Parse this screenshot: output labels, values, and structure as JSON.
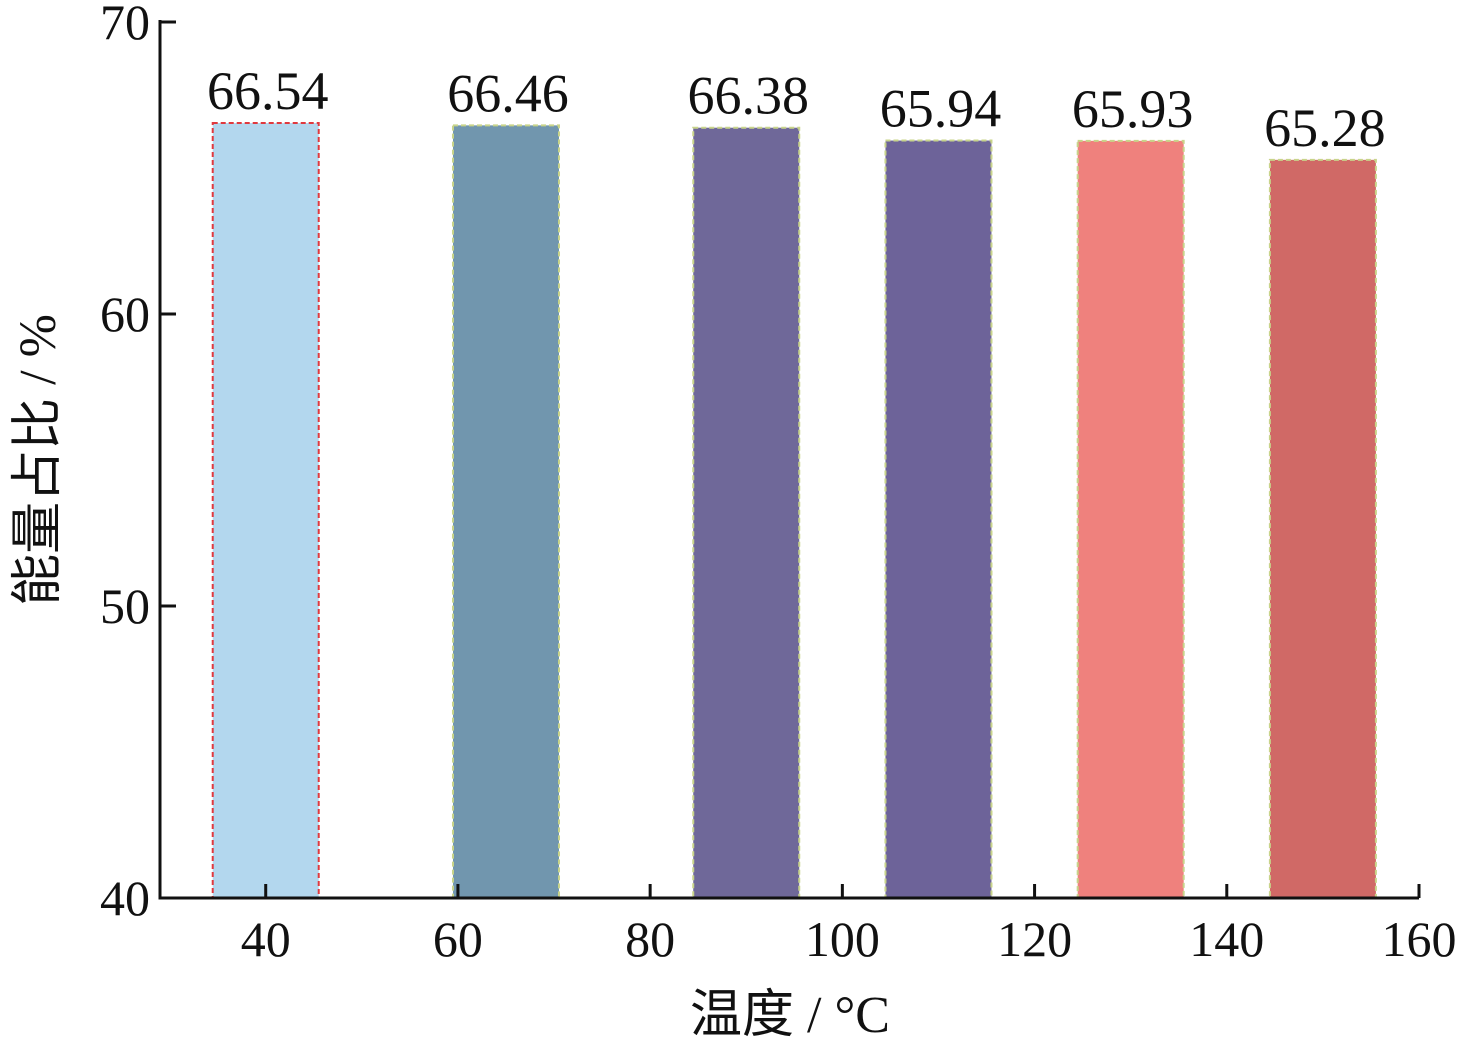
{
  "chart_data": {
    "type": "bar",
    "x": [
      40,
      65,
      90,
      110,
      130,
      150
    ],
    "values": [
      66.54,
      66.46,
      66.38,
      65.94,
      65.93,
      65.28
    ],
    "colors": [
      "#b3d7ee",
      "#7196ae",
      "#6f6899",
      "#6d6399",
      "#ef817d",
      "#d06966"
    ],
    "edgecolors": [
      "#e0393e",
      "#c8d48a",
      "#c8d48a",
      "#c8d48a",
      "#c8d48a",
      "#c8d48a"
    ],
    "xlabel": "温度 / °C",
    "ylabel": "能量占比 / %",
    "xlim": [
      29,
      160
    ],
    "xticks": [
      40,
      60,
      80,
      100,
      120,
      140,
      160
    ],
    "ylim": [
      40,
      70
    ],
    "yticks": [
      40,
      50,
      60,
      70
    ],
    "grid": false
  }
}
